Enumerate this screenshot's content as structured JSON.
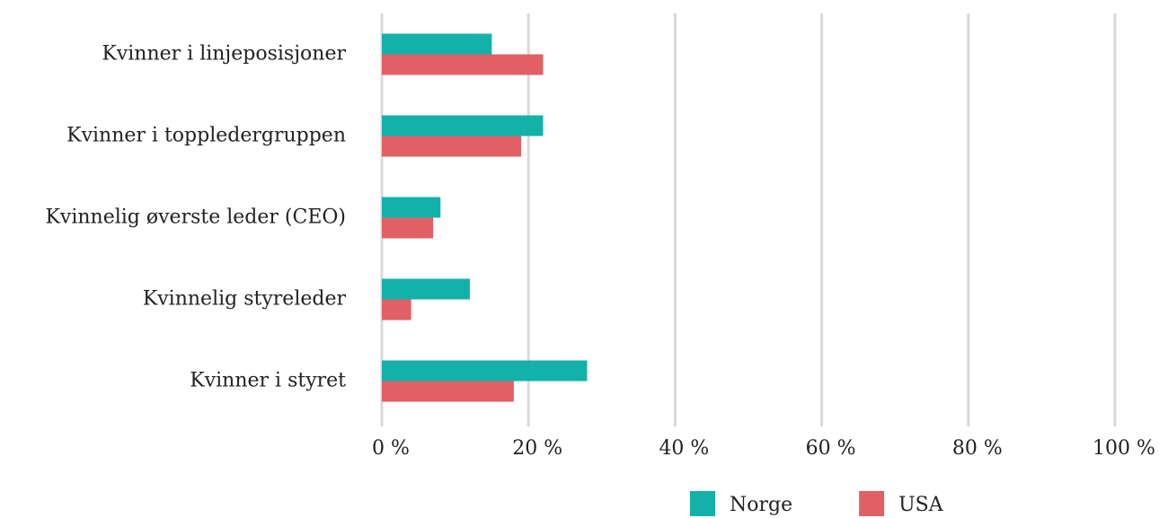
{
  "chart_data": {
    "type": "bar",
    "orientation": "horizontal",
    "categories": [
      "Kvinner i linjeposisjoner",
      "Kvinner i toppledergruppen",
      "Kvinnelig øverste leder (CEO)",
      "Kvinnelig styreleder",
      "Kvinner i styret"
    ],
    "series": [
      {
        "name": "Norge",
        "color": "#14b1a9",
        "values": [
          15,
          22,
          8,
          12,
          28
        ]
      },
      {
        "name": "USA",
        "color": "#e06066",
        "values": [
          22,
          19,
          7,
          4,
          18
        ]
      }
    ],
    "xlim": [
      0,
      100
    ],
    "xticks": [
      {
        "value": 0,
        "label": "0 %"
      },
      {
        "value": 20,
        "label": "20 %"
      },
      {
        "value": 40,
        "label": "40 %"
      },
      {
        "value": 60,
        "label": "60 %"
      },
      {
        "value": 80,
        "label": "80 %"
      },
      {
        "value": 100,
        "label": "100 %"
      }
    ],
    "grid": true,
    "legend": "bottom"
  }
}
